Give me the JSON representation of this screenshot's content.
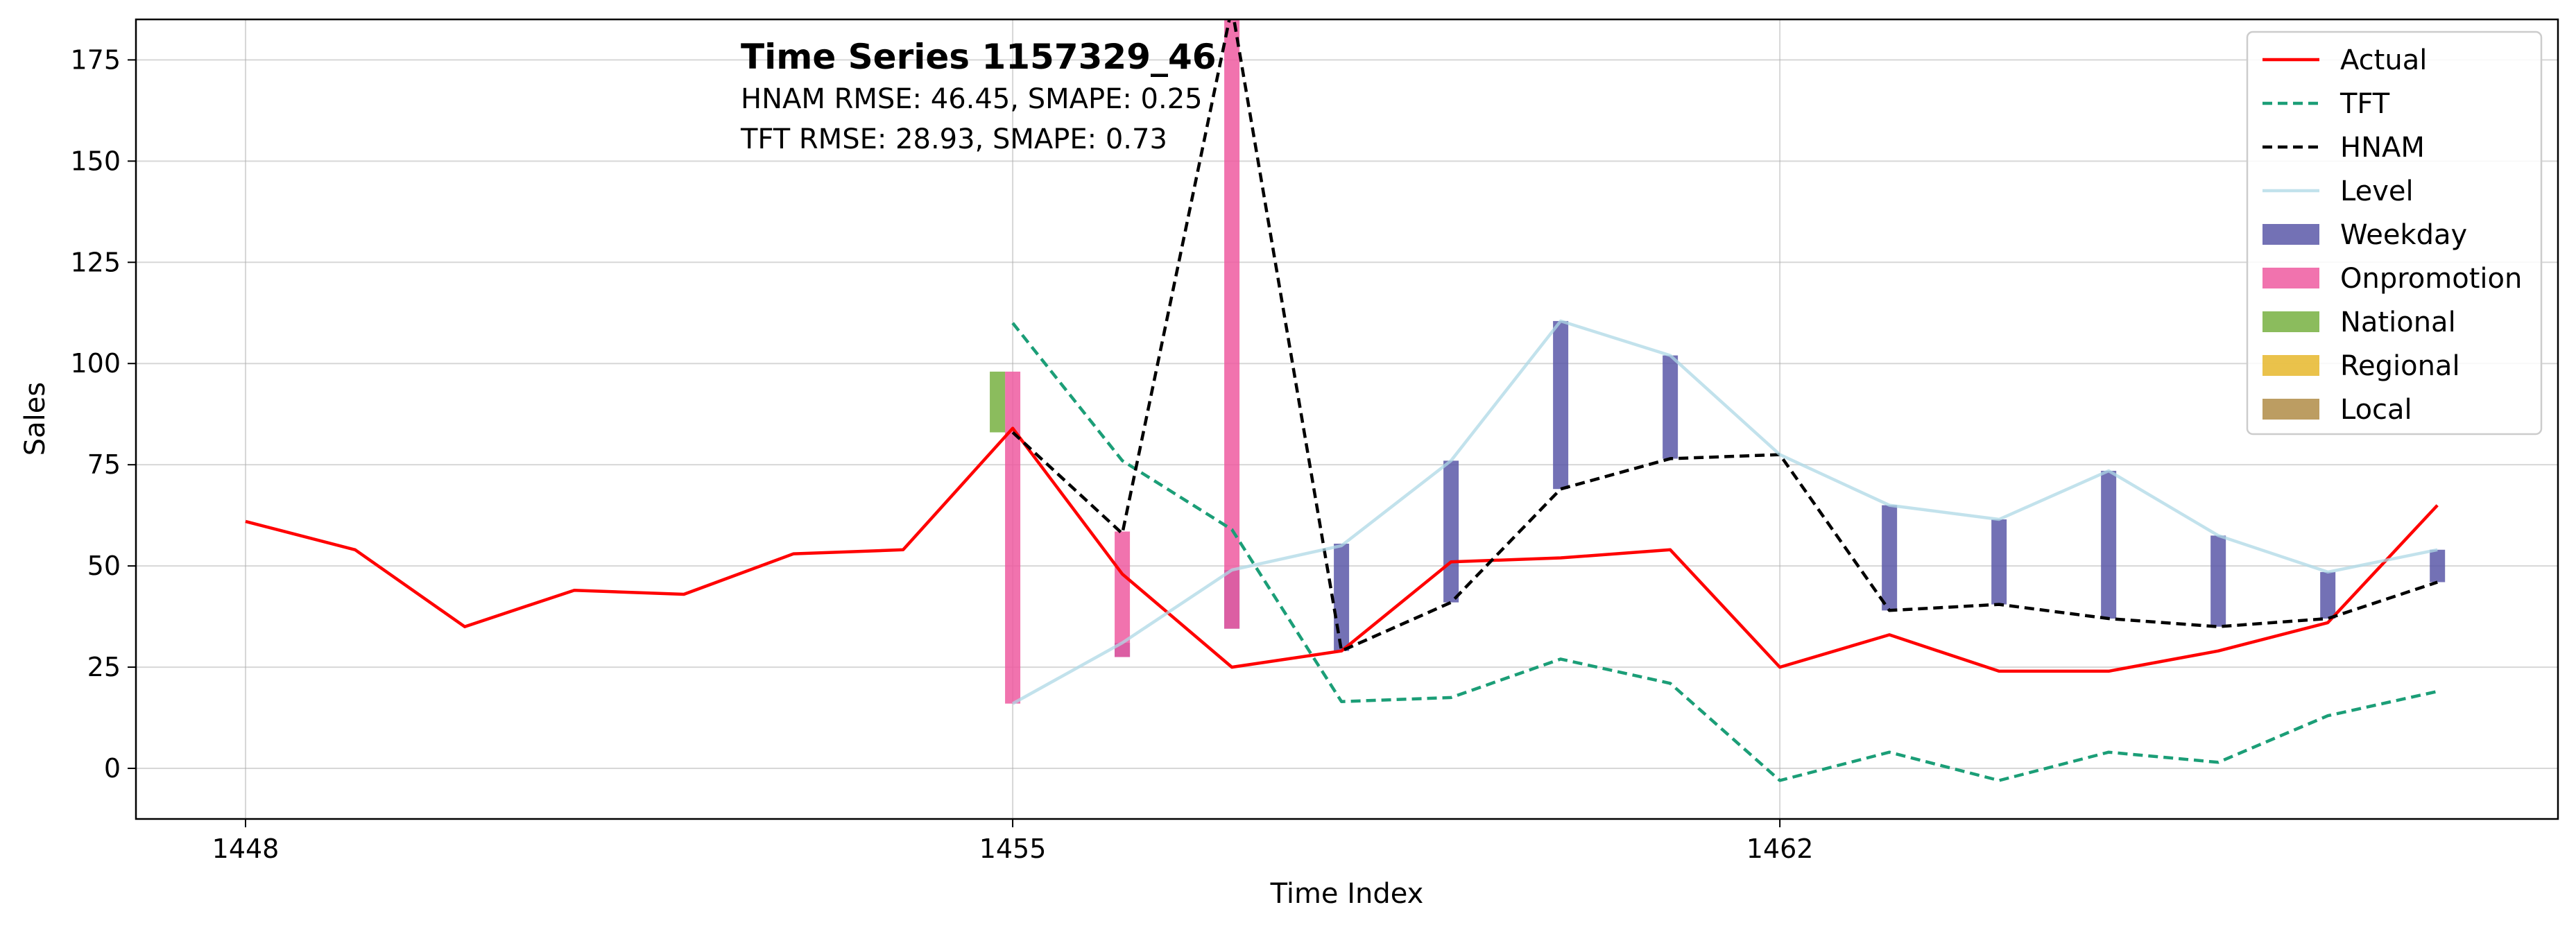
{
  "chart_data": {
    "type": "line",
    "title": "Time Series 1157329_46",
    "subtitle_lines": [
      "HNAM RMSE: 46.45,   SMAPE: 0.25",
      "TFT     RMSE: 28.93,   SMAPE: 0.73"
    ],
    "xlabel": "Time Index",
    "ylabel": "Sales",
    "xlim": [
      1447,
      1469.1
    ],
    "ylim": [
      -12.5,
      185
    ],
    "xticks": [
      1448,
      1455,
      1462
    ],
    "yticks": [
      0,
      25,
      50,
      75,
      100,
      125,
      150,
      175
    ],
    "grid": true,
    "legend_position": "top-right",
    "series": [
      {
        "name": "Actual",
        "style": "line",
        "color": "#ff0000",
        "x": [
          1448,
          1449,
          1450,
          1451,
          1452,
          1453,
          1454,
          1455,
          1456,
          1457,
          1458,
          1459,
          1460,
          1461,
          1462,
          1463,
          1464,
          1465,
          1466,
          1467,
          1468
        ],
        "values": [
          61,
          54,
          35,
          44,
          43,
          53,
          54,
          84,
          48,
          25,
          29,
          51,
          52,
          54,
          25,
          33,
          24,
          24,
          29,
          36,
          65
        ]
      },
      {
        "name": "TFT",
        "style": "dashed",
        "color": "#1b9e77",
        "x": [
          1455,
          1456,
          1457,
          1458,
          1459,
          1460,
          1461,
          1462,
          1463,
          1464,
          1465,
          1466,
          1467,
          1468
        ],
        "values": [
          110,
          76,
          59,
          16.5,
          17.5,
          27,
          21,
          -3,
          4,
          -3,
          4,
          1.5,
          13,
          19
        ]
      },
      {
        "name": "HNAM",
        "style": "dashed",
        "color": "#000000",
        "x": [
          1455,
          1456,
          1457,
          1458,
          1459,
          1460,
          1461,
          1462,
          1463,
          1464,
          1465,
          1466,
          1467,
          1468
        ],
        "values": [
          83,
          58,
          188,
          29,
          41,
          69,
          76.5,
          77.5,
          39,
          40.5,
          37,
          35,
          37,
          46
        ]
      },
      {
        "name": "Level",
        "style": "line",
        "color": "#add8e6",
        "x": [
          1455,
          1456,
          1457,
          1458,
          1459,
          1460,
          1461,
          1462,
          1463,
          1464,
          1465,
          1466,
          1467,
          1468
        ],
        "values": [
          16,
          31,
          49,
          55,
          76,
          110.5,
          102,
          77.5,
          65,
          61.5,
          73.5,
          57.5,
          48.5,
          54
        ]
      }
    ],
    "components": [
      {
        "name": "Weekday",
        "color": "#5b58a8",
        "bars": [
          {
            "x": 1456,
            "from": 27.5,
            "to": 31
          },
          {
            "x": 1457,
            "from": 34.5,
            "to": 49
          },
          {
            "x": 1458,
            "from": 29,
            "to": 55.5
          },
          {
            "x": 1459,
            "from": 41,
            "to": 76
          },
          {
            "x": 1460,
            "from": 69,
            "to": 110.5
          },
          {
            "x": 1461,
            "from": 76.5,
            "to": 102
          },
          {
            "x": 1463,
            "from": 39,
            "to": 65
          },
          {
            "x": 1464,
            "from": 40.5,
            "to": 61.5
          },
          {
            "x": 1465,
            "from": 37,
            "to": 73.5
          },
          {
            "x": 1466,
            "from": 35,
            "to": 57.5
          },
          {
            "x": 1467,
            "from": 37,
            "to": 48.5
          },
          {
            "x": 1468,
            "from": 46,
            "to": 54
          }
        ]
      },
      {
        "name": "Onpromotion",
        "color": "#ef5aa0",
        "bars": [
          {
            "x": 1455,
            "from": 16,
            "to": 98
          },
          {
            "x": 1456,
            "from": 27.5,
            "to": 58.5
          },
          {
            "x": 1457,
            "from": 34.5,
            "to": 188
          }
        ]
      },
      {
        "name": "National",
        "color": "#77b041",
        "bars": [
          {
            "x": 1455,
            "from": 83,
            "to": 98,
            "offset": -1
          }
        ]
      },
      {
        "name": "Regional",
        "color": "#e6b72b",
        "bars": []
      },
      {
        "name": "Local",
        "color": "#b08c47",
        "bars": []
      }
    ]
  }
}
